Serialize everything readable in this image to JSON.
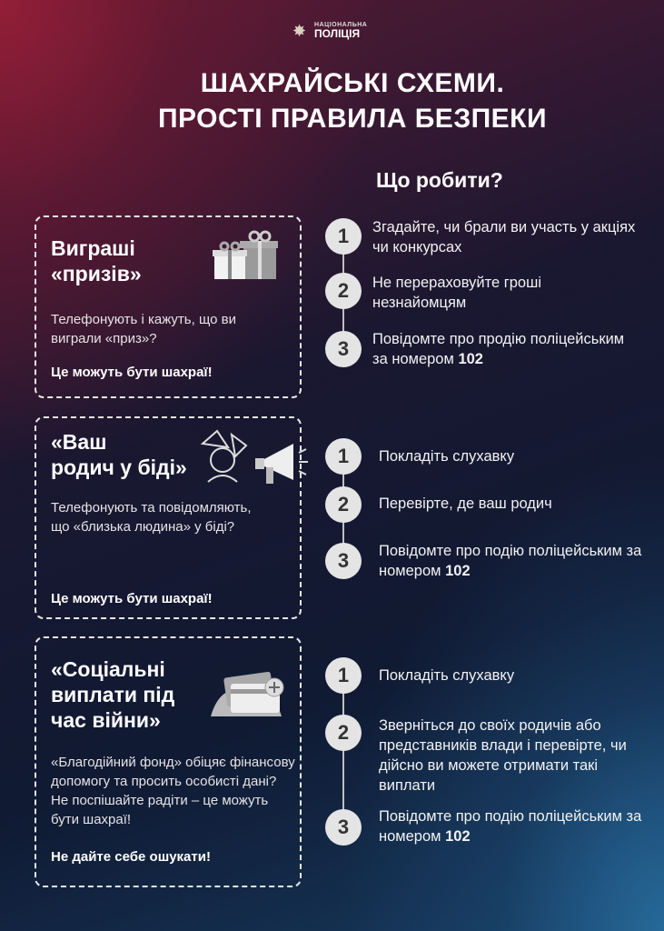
{
  "logo": {
    "line1": "НАЦІОНАЛЬНА",
    "line2": "ПОЛІЦІЯ"
  },
  "title": {
    "line1": "ШАХРАЙСЬКІ СХЕМИ.",
    "line2": "ПРОСТІ ПРАВИЛА БЕЗПЕКИ"
  },
  "what_to_do": "Що робити?",
  "sections": [
    {
      "title1": "Виграші",
      "title2": "«призів»",
      "icon": "gift-icon",
      "body": "Телефонують і кажуть, що ви виграли «приз»?",
      "warning": "Це можуть бути шахраї!",
      "steps": [
        {
          "n": "1",
          "text": "Згадайте, чи брали ви участь у акціях чи конкурсах"
        },
        {
          "n": "2",
          "text": "Не перераховуйте гроші незнайомцям"
        },
        {
          "n": "3",
          "text": "Повідомте про продію поліцейським за номером",
          "bold": "102"
        }
      ]
    },
    {
      "title1": "«Ваш",
      "title2": "родич у біді»",
      "icon": "worried-person-megaphone-icon",
      "body": "Телефонують та повідомляють, що «близька людина» у біді?",
      "warning": "Це можуть бути шахраї!",
      "steps": [
        {
          "n": "1",
          "text": "Покладіть слухавку"
        },
        {
          "n": "2",
          "text": "Перевірте, де ваш родич"
        },
        {
          "n": "3",
          "text": "Повідомте про подію поліцейським за номером",
          "bold": "102"
        }
      ]
    },
    {
      "title1": "«Соціальні",
      "title2": "виплати під",
      "title3": "час війни»",
      "icon": "payment-card-icon",
      "body": "«Благодійний фонд» обіцяє фінансову допомогу та просить особисті дані? Не поспішайте радіти – це можуть бути шахраї!",
      "warning": "Не дайте себе ошукати!",
      "steps": [
        {
          "n": "1",
          "text": "Покладіть слухавку"
        },
        {
          "n": "2",
          "text": "Зверніться до своїх родичів або представників влади і перевірте, чи дійсно ви можете отримати такі виплати"
        },
        {
          "n": "3",
          "text": "Повідомте про подію поліцейським за номером",
          "bold": "102"
        }
      ]
    }
  ]
}
